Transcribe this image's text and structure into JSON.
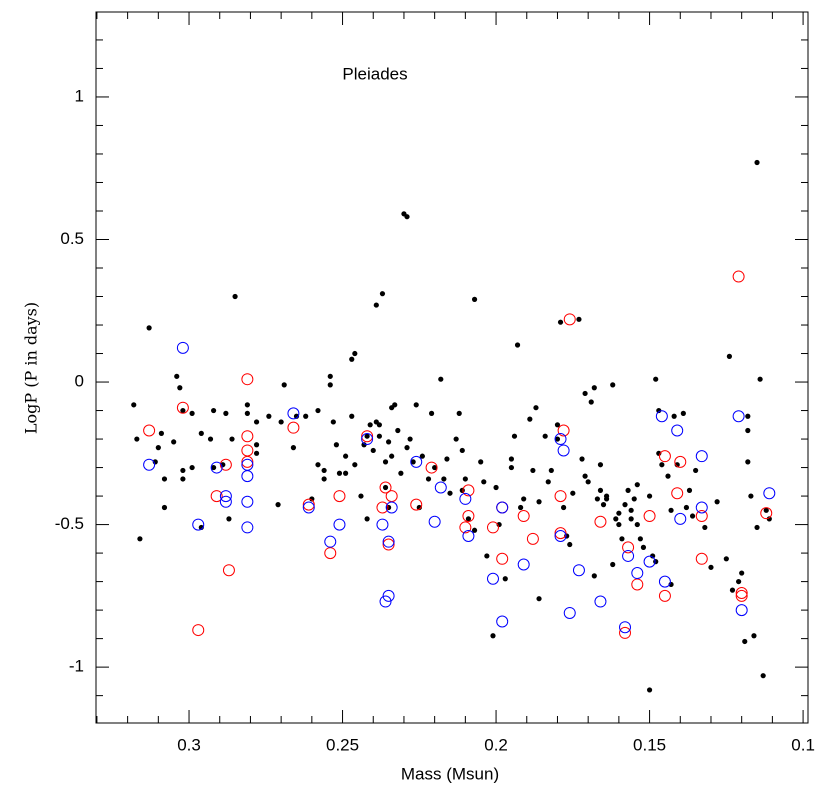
{
  "chart_data": {
    "type": "scatter",
    "annotation": "Pleiades",
    "x_label": "Mass (Msun)",
    "y_label": "LogP (P in days)",
    "xlim": [
      0.3303,
      0.0984
    ],
    "ylim": [
      -1.196,
      1.298
    ],
    "xticks": [
      0.3,
      0.25,
      0.2,
      0.15,
      0.1
    ],
    "yticks": [
      1,
      0.5,
      0,
      -0.5,
      -1
    ],
    "xminorticks": [
      0.33,
      0.32,
      0.31,
      0.29,
      0.28,
      0.27,
      0.26,
      0.24,
      0.23,
      0.22,
      0.21,
      0.19,
      0.18,
      0.17,
      0.16,
      0.14,
      0.13,
      0.12,
      0.11
    ],
    "yminorticks": [
      1.2,
      1.1,
      0.9,
      0.8,
      0.7,
      0.6,
      0.4,
      0.3,
      0.2,
      0.1,
      -0.1,
      -0.2,
      -0.3,
      -0.4,
      -0.6,
      -0.7,
      -0.8,
      -0.9,
      -1.1
    ],
    "series": [
      {
        "color": "#000000",
        "marker": "dot",
        "x": [
          0.318,
          0.317,
          0.316,
          0.313,
          0.311,
          0.31,
          0.309,
          0.308,
          0.308,
          0.305,
          0.304,
          0.303,
          0.302,
          0.302,
          0.302,
          0.299,
          0.299,
          0.296,
          0.296,
          0.293,
          0.292,
          0.292,
          0.289,
          0.288,
          0.287,
          0.285,
          0.286,
          0.281,
          0.281,
          0.278,
          0.278,
          0.278,
          0.274,
          0.271,
          0.27,
          0.269,
          0.266,
          0.265,
          0.262,
          0.26,
          0.258,
          0.258,
          0.256,
          0.256,
          0.254,
          0.254,
          0.253,
          0.252,
          0.251,
          0.249,
          0.249,
          0.247,
          0.247,
          0.246,
          0.246,
          0.244,
          0.243,
          0.242,
          0.242,
          0.241,
          0.24,
          0.239,
          0.239,
          0.238,
          0.238,
          0.237,
          0.236,
          0.236,
          0.235,
          0.235,
          0.234,
          0.234,
          0.233,
          0.232,
          0.231,
          0.23,
          0.229,
          0.229,
          0.228,
          0.227,
          0.226,
          0.225,
          0.224,
          0.222,
          0.221,
          0.22,
          0.218,
          0.217,
          0.216,
          0.215,
          0.213,
          0.212,
          0.211,
          0.211,
          0.21,
          0.209,
          0.207,
          0.207,
          0.205,
          0.204,
          0.203,
          0.201,
          0.2,
          0.199,
          0.197,
          0.195,
          0.195,
          0.194,
          0.193,
          0.192,
          0.191,
          0.189,
          0.188,
          0.187,
          0.186,
          0.186,
          0.184,
          0.183,
          0.182,
          0.18,
          0.18,
          0.179,
          0.178,
          0.177,
          0.176,
          0.175,
          0.173,
          0.172,
          0.171,
          0.171,
          0.17,
          0.169,
          0.168,
          0.168,
          0.167,
          0.166,
          0.166,
          0.165,
          0.164,
          0.164,
          0.162,
          0.162,
          0.161,
          0.16,
          0.16,
          0.159,
          0.158,
          0.157,
          0.156,
          0.156,
          0.155,
          0.154,
          0.154,
          0.153,
          0.152,
          0.15,
          0.15,
          0.149,
          0.148,
          0.148,
          0.147,
          0.147,
          0.146,
          0.144,
          0.143,
          0.143,
          0.142,
          0.141,
          0.139,
          0.138,
          0.137,
          0.136,
          0.135,
          0.132,
          0.13,
          0.128,
          0.125,
          0.124,
          0.123,
          0.121,
          0.12,
          0.119,
          0.118,
          0.118,
          0.117,
          0.116,
          0.115,
          0.115,
          0.114,
          0.113,
          0.112,
          0.111,
          0.118
        ],
        "y": [
          -0.08,
          -0.2,
          -0.55,
          0.19,
          -0.28,
          -0.23,
          -0.18,
          -0.34,
          -0.44,
          -0.21,
          0.02,
          -0.02,
          -0.1,
          -0.31,
          -0.34,
          -0.11,
          -0.3,
          -0.18,
          -0.51,
          -0.2,
          -0.1,
          -0.3,
          -0.29,
          -0.11,
          -0.48,
          0.3,
          -0.2,
          -0.08,
          -0.11,
          -0.14,
          -0.25,
          -0.22,
          -0.12,
          -0.43,
          -0.14,
          -0.01,
          -0.23,
          -0.12,
          -0.12,
          -0.41,
          -0.1,
          -0.29,
          -0.34,
          -0.31,
          0.02,
          -0.01,
          -0.14,
          -0.22,
          -0.32,
          -0.32,
          -0.26,
          0.08,
          -0.12,
          0.1,
          -0.29,
          -0.4,
          -0.22,
          -0.48,
          -0.19,
          -0.15,
          -0.24,
          -0.14,
          0.27,
          -0.19,
          -0.15,
          0.31,
          -0.28,
          -0.37,
          -0.21,
          -0.44,
          -0.26,
          -0.09,
          -0.08,
          -0.17,
          -0.32,
          0.59,
          0.58,
          -0.23,
          -0.2,
          -0.28,
          -0.08,
          -0.44,
          -0.26,
          -0.34,
          -0.11,
          -0.3,
          0.01,
          -0.34,
          -0.27,
          -0.39,
          -0.2,
          -0.11,
          -0.24,
          -0.38,
          -0.34,
          -0.48,
          0.29,
          -0.52,
          -0.28,
          -0.35,
          -0.61,
          -0.89,
          -0.37,
          -0.5,
          -0.69,
          -0.27,
          -0.3,
          -0.19,
          0.13,
          -0.44,
          -0.41,
          -0.13,
          -0.31,
          -0.09,
          -0.76,
          -0.42,
          -0.19,
          -0.35,
          -0.31,
          -0.15,
          -0.2,
          0.21,
          -0.44,
          -0.54,
          -0.57,
          -0.39,
          0.22,
          -0.27,
          -0.33,
          -0.04,
          -0.35,
          -0.07,
          -0.68,
          -0.02,
          -0.41,
          -0.38,
          -0.29,
          -0.43,
          -0.41,
          -0.4,
          -0.01,
          -0.64,
          -0.48,
          -0.46,
          -0.5,
          -0.55,
          -0.43,
          -0.38,
          -0.45,
          -0.48,
          -0.41,
          -0.36,
          -0.5,
          -0.55,
          -0.58,
          -0.4,
          -1.08,
          -0.61,
          -0.63,
          0.01,
          -0.25,
          -0.1,
          -0.29,
          -0.33,
          -0.45,
          -0.71,
          -0.12,
          -0.29,
          -0.11,
          -0.44,
          -0.38,
          -0.47,
          -0.31,
          -0.51,
          -0.65,
          -0.42,
          -0.62,
          0.09,
          -0.73,
          -0.7,
          -0.67,
          -0.91,
          -0.12,
          -0.28,
          -0.4,
          -0.89,
          -0.51,
          0.77,
          0.01,
          -1.03,
          -0.45,
          -0.48,
          -0.17
        ]
      },
      {
        "color": "#ff0000",
        "marker": "ring",
        "x": [
          0.313,
          0.302,
          0.291,
          0.288,
          0.287,
          0.297,
          0.281,
          0.281,
          0.281,
          0.281,
          0.266,
          0.261,
          0.251,
          0.254,
          0.242,
          0.237,
          0.236,
          0.235,
          0.234,
          0.226,
          0.221,
          0.21,
          0.209,
          0.209,
          0.201,
          0.198,
          0.198,
          0.191,
          0.188,
          0.179,
          0.179,
          0.178,
          0.176,
          0.166,
          0.157,
          0.158,
          0.154,
          0.15,
          0.145,
          0.145,
          0.141,
          0.14,
          0.133,
          0.133,
          0.121,
          0.12,
          0.12,
          0.112
        ],
        "y": [
          -0.17,
          -0.09,
          -0.4,
          -0.29,
          -0.66,
          -0.87,
          0.01,
          -0.19,
          -0.24,
          -0.28,
          -0.16,
          -0.43,
          -0.4,
          -0.6,
          -0.19,
          -0.44,
          -0.37,
          -0.57,
          -0.4,
          -0.43,
          -0.3,
          -0.51,
          -0.47,
          -0.38,
          -0.51,
          -0.44,
          -0.62,
          -0.47,
          -0.55,
          -0.4,
          -0.53,
          -0.17,
          0.22,
          -0.49,
          -0.58,
          -0.88,
          -0.71,
          -0.47,
          -0.26,
          -0.75,
          -0.39,
          -0.28,
          -0.47,
          -0.62,
          0.37,
          -0.74,
          -0.75,
          -0.46
        ]
      },
      {
        "color": "#0000ff",
        "marker": "ring",
        "x": [
          0.313,
          0.302,
          0.297,
          0.291,
          0.288,
          0.288,
          0.281,
          0.281,
          0.281,
          0.281,
          0.266,
          0.261,
          0.251,
          0.254,
          0.242,
          0.237,
          0.236,
          0.235,
          0.235,
          0.234,
          0.226,
          0.22,
          0.218,
          0.21,
          0.209,
          0.201,
          0.198,
          0.198,
          0.191,
          0.179,
          0.178,
          0.179,
          0.176,
          0.173,
          0.166,
          0.158,
          0.157,
          0.154,
          0.15,
          0.146,
          0.145,
          0.141,
          0.14,
          0.133,
          0.133,
          0.121,
          0.12,
          0.111
        ],
        "y": [
          -0.29,
          0.12,
          -0.5,
          -0.3,
          -0.4,
          -0.42,
          -0.29,
          -0.33,
          -0.42,
          -0.51,
          -0.11,
          -0.44,
          -0.5,
          -0.56,
          -0.2,
          -0.5,
          -0.77,
          -0.75,
          -0.56,
          -0.44,
          -0.28,
          -0.49,
          -0.37,
          -0.41,
          -0.54,
          -0.69,
          -0.44,
          -0.84,
          -0.64,
          -0.2,
          -0.24,
          -0.54,
          -0.81,
          -0.66,
          -0.77,
          -0.86,
          -0.61,
          -0.67,
          -0.63,
          -0.12,
          -0.7,
          -0.17,
          -0.48,
          -0.26,
          -0.44,
          -0.12,
          -0.8,
          -0.39
        ]
      }
    ]
  }
}
